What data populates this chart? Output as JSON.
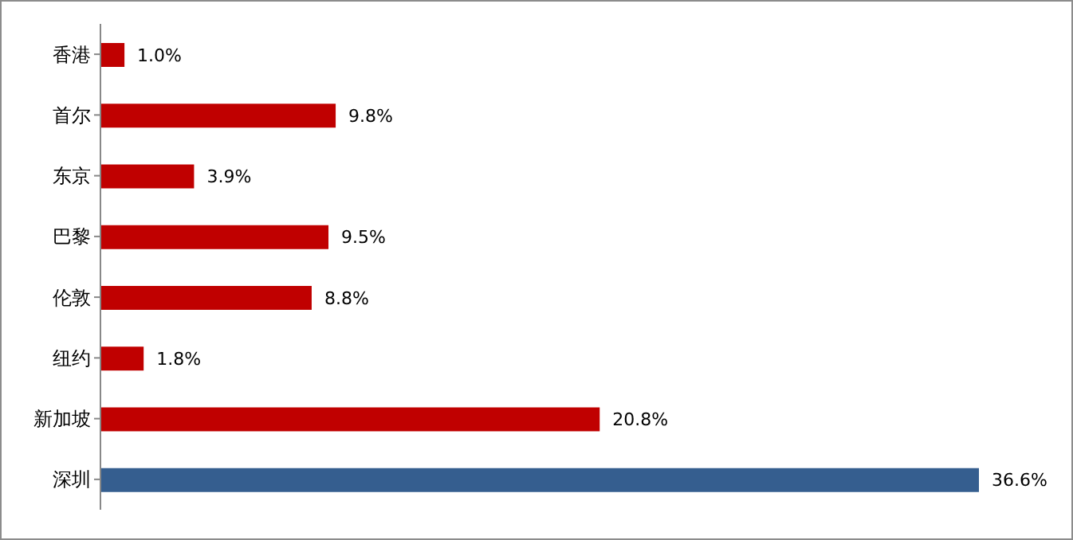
{
  "chart_data": {
    "type": "bar",
    "orientation": "horizontal",
    "categories": [
      "香港",
      "首尔",
      "东京",
      "巴黎",
      "伦敦",
      "纽约",
      "新加坡",
      "深圳"
    ],
    "values": [
      1.0,
      9.8,
      3.9,
      9.5,
      8.8,
      1.8,
      20.8,
      36.6
    ],
    "colors": [
      "#c00000",
      "#c00000",
      "#c00000",
      "#c00000",
      "#c00000",
      "#c00000",
      "#c00000",
      "#355e8f"
    ],
    "value_labels": [
      "1.0%",
      "9.8%",
      "3.9%",
      "9.5%",
      "8.8%",
      "1.8%",
      "20.8%",
      "36.6%"
    ],
    "grid": false,
    "legend": false
  }
}
